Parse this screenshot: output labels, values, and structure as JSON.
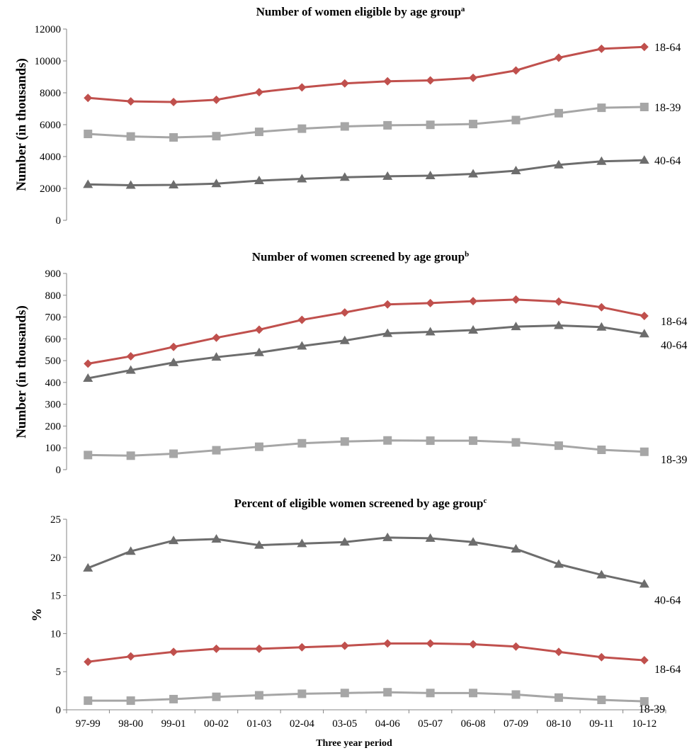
{
  "chart_data": [
    {
      "type": "line",
      "title": "Number of women eligible by age group",
      "title_superscript": "a",
      "ylabel": "Number (in thousands)",
      "xlabel": "",
      "ylim": [
        0,
        12000
      ],
      "yticks": [
        0,
        2000,
        4000,
        6000,
        8000,
        10000,
        12000
      ],
      "grid": false,
      "legend": "end-of-line labels",
      "categories": [
        "97-99",
        "98-00",
        "99-01",
        "00-02",
        "01-03",
        "02-04",
        "03-05",
        "04-06",
        "05-07",
        "06-08",
        "07-09",
        "08-10",
        "09-11",
        "10-12"
      ],
      "series": [
        {
          "name": "18-64",
          "marker": "diamond",
          "color": "#c0504d",
          "values": [
            7680,
            7460,
            7420,
            7560,
            8040,
            8340,
            8590,
            8720,
            8780,
            8940,
            9400,
            10200,
            10760,
            10880
          ]
        },
        {
          "name": "18-39",
          "marker": "square",
          "color": "#a6a6a6",
          "values": [
            5420,
            5260,
            5200,
            5280,
            5550,
            5750,
            5890,
            5960,
            5990,
            6040,
            6290,
            6720,
            7060,
            7110
          ]
        },
        {
          "name": "40-64",
          "marker": "triangle",
          "color": "#6d6d6d",
          "values": [
            2250,
            2200,
            2220,
            2300,
            2490,
            2600,
            2700,
            2760,
            2800,
            2910,
            3110,
            3480,
            3700,
            3770
          ]
        }
      ]
    },
    {
      "type": "line",
      "title": "Number of women screened by age group",
      "title_superscript": "b",
      "ylabel": "Number (in thousands)",
      "xlabel": "",
      "ylim": [
        0,
        900
      ],
      "yticks": [
        0,
        100,
        200,
        300,
        400,
        500,
        600,
        700,
        800,
        900
      ],
      "grid": false,
      "legend": "end-of-line labels",
      "categories": [
        "97-99",
        "98-00",
        "99-01",
        "00-02",
        "01-03",
        "02-04",
        "03-05",
        "04-06",
        "05-07",
        "06-08",
        "07-09",
        "08-10",
        "09-11",
        "10-12"
      ],
      "series": [
        {
          "name": "18-64",
          "marker": "diamond",
          "color": "#c0504d",
          "values": [
            486,
            520,
            563,
            605,
            642,
            687,
            721,
            758,
            764,
            773,
            780,
            771,
            745,
            705
          ]
        },
        {
          "name": "40-64",
          "marker": "triangle",
          "color": "#6d6d6d",
          "values": [
            419,
            456,
            491,
            516,
            537,
            567,
            592,
            625,
            632,
            640,
            656,
            661,
            654,
            623
          ]
        },
        {
          "name": "18-39",
          "marker": "square",
          "color": "#a6a6a6",
          "values": [
            67,
            64,
            73,
            89,
            105,
            121,
            129,
            134,
            133,
            133,
            125,
            110,
            91,
            82
          ]
        }
      ]
    },
    {
      "type": "line",
      "title": "Percent of eligible women screened by age group",
      "title_superscript": "c",
      "ylabel": "%",
      "xlabel": "Three year period",
      "ylim": [
        0,
        25
      ],
      "yticks": [
        0,
        5,
        10,
        15,
        20,
        25
      ],
      "grid": false,
      "legend": "end-of-line labels",
      "categories": [
        "97-99",
        "98-00",
        "99-01",
        "00-02",
        "01-03",
        "02-04",
        "03-05",
        "04-06",
        "05-07",
        "06-08",
        "07-09",
        "08-10",
        "09-11",
        "10-12"
      ],
      "series": [
        {
          "name": "40-64",
          "marker": "triangle",
          "color": "#6d6d6d",
          "values": [
            18.6,
            20.8,
            22.2,
            22.4,
            21.6,
            21.8,
            22.0,
            22.6,
            22.5,
            22.0,
            21.1,
            19.1,
            17.7,
            16.5
          ]
        },
        {
          "name": "18-64",
          "marker": "diamond",
          "color": "#c0504d",
          "values": [
            6.3,
            7.0,
            7.6,
            8.0,
            8.0,
            8.2,
            8.4,
            8.7,
            8.7,
            8.6,
            8.3,
            7.6,
            6.9,
            6.5
          ]
        },
        {
          "name": "18-39",
          "marker": "square",
          "color": "#a6a6a6",
          "values": [
            1.2,
            1.2,
            1.4,
            1.7,
            1.9,
            2.1,
            2.2,
            2.3,
            2.2,
            2.2,
            2.0,
            1.6,
            1.3,
            1.1
          ]
        }
      ]
    }
  ]
}
